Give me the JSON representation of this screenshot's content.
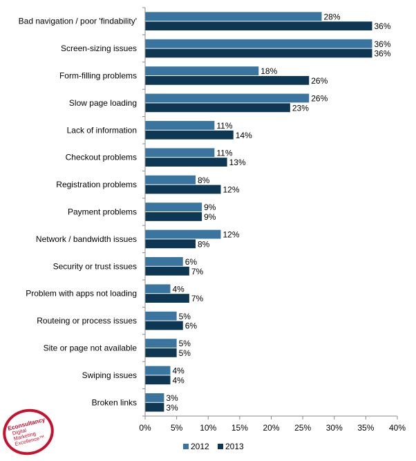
{
  "chart_data": {
    "type": "bar",
    "orientation": "horizontal",
    "categories": [
      "Bad navigation / poor 'findability'",
      "Screen-sizing issues",
      "Form-filling problems",
      "Slow page loading",
      "Lack of information",
      "Checkout problems",
      "Registration problems",
      "Payment problems",
      "Network / bandwidth issues",
      "Security or trust issues",
      "Problem with apps not loading",
      "Routeing or process issues",
      "Site or page not available",
      "Swiping issues",
      "Broken links"
    ],
    "series": [
      {
        "name": "2012",
        "color": "#3a75a0",
        "values": [
          28,
          36,
          18,
          26,
          11,
          11,
          8,
          9,
          12,
          6,
          4,
          5,
          5,
          4,
          3
        ],
        "labels": [
          "28%",
          "36%",
          "18%",
          "26%",
          "11%",
          "11%",
          "8%",
          "9%",
          "12%",
          "6%",
          "4%",
          "5%",
          "5%",
          "4%",
          "3%"
        ]
      },
      {
        "name": "2013",
        "color": "#0d3753",
        "values": [
          36,
          36,
          26,
          23,
          14,
          13,
          12,
          9,
          8,
          7,
          7,
          6,
          5,
          4,
          3
        ],
        "labels": [
          "36%",
          "36%",
          "26%",
          "23%",
          "14%",
          "13%",
          "12%",
          "9%",
          "8%",
          "7%",
          "7%",
          "6%",
          "5%",
          "4%",
          "3%"
        ]
      }
    ],
    "xlim": [
      0,
      40
    ],
    "ticks": [
      0,
      5,
      10,
      15,
      20,
      25,
      30,
      35,
      40
    ],
    "tick_labels": [
      "0%",
      "5%",
      "10%",
      "15%",
      "20%",
      "25%",
      "30%",
      "35%",
      "40%"
    ],
    "grid": false,
    "legend_position": "bottom"
  },
  "logo": {
    "title": "Econsultancy",
    "lines": [
      "Digital",
      "Marketing",
      "Excellence™"
    ]
  }
}
